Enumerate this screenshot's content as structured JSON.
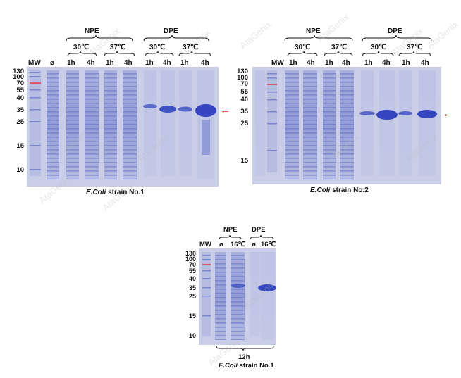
{
  "panel1": {
    "group_labels": [
      "NPE",
      "DPE"
    ],
    "temp_labels": [
      "30℃",
      "37℃",
      "30℃",
      "37℃"
    ],
    "lane_labels": [
      "MW",
      "ø",
      "1h",
      "4h",
      "1h",
      "4h",
      "1h",
      "4h",
      "1h",
      "4h"
    ],
    "mw_markers": [
      "130",
      "100",
      "70",
      "55",
      "40",
      "35",
      "25",
      "15",
      "10"
    ],
    "caption_italic": "E.Coli",
    "caption_rest": " strain No.1"
  },
  "panel2": {
    "group_labels": [
      "NPE",
      "DPE"
    ],
    "temp_labels": [
      "30℃",
      "37℃",
      "30℃",
      "37℃"
    ],
    "lane_labels": [
      "MW",
      "1h",
      "4h",
      "1h",
      "4h",
      "1h",
      "4h",
      "1h",
      "4h"
    ],
    "mw_markers": [
      "130",
      "100",
      "70",
      "55",
      "40",
      "35",
      "25",
      "15"
    ],
    "caption_italic": "E.Coli",
    "caption_rest": " strain No.2"
  },
  "panel3": {
    "group_labels": [
      "NPE",
      "DPE"
    ],
    "lane_labels": [
      "MW",
      "ø",
      "16℃",
      "ø",
      "16℃"
    ],
    "mw_markers": [
      "130",
      "100",
      "70",
      "55",
      "40",
      "35",
      "25",
      "15",
      "10"
    ],
    "time_label": "12h",
    "caption_italic": "E.Coli",
    "caption_rest": " strain No.1"
  },
  "colors": {
    "gel_background": "#c9cde8",
    "band": "#4a5cc4",
    "arrow": "#d42020",
    "marker_red": "#d45a6a"
  },
  "watermark": "AtaGenix"
}
